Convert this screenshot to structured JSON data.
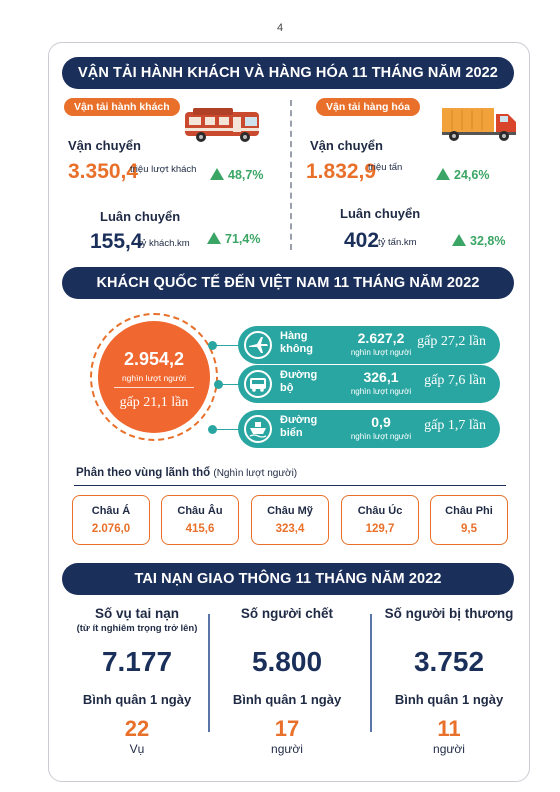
{
  "page_number": "4",
  "transport": {
    "title": "VẬN TẢI HÀNH KHÁCH VÀ HÀNG HÓA 11 THÁNG NĂM 2022",
    "passenger": {
      "tag": "Vận tải hành khách",
      "transport_label": "Vận chuyển",
      "transport_value": "3.350,4",
      "transport_unit": "triệu lượt khách",
      "transport_growth": "48,7%",
      "rotation_label": "Luân chuyển",
      "rotation_value": "155,4",
      "rotation_unit": "tỷ khách.km",
      "rotation_growth": "71,4%"
    },
    "cargo": {
      "tag": "Vận tải hàng hóa",
      "transport_label": "Vận chuyển",
      "transport_value": "1.832,9",
      "transport_unit": "triệu tấn",
      "transport_growth": "24,6%",
      "rotation_label": "Luân chuyển",
      "rotation_value": "402",
      "rotation_unit": "tỷ tấn.km",
      "rotation_growth": "32,8%"
    }
  },
  "visitors": {
    "title": "KHÁCH QUỐC TẾ ĐẾN VIỆT NAM 11 THÁNG NĂM 2022",
    "total_value": "2.954,2",
    "total_unit": "nghìn lượt người",
    "total_gap": "gấp 21,1 lần",
    "modes": [
      {
        "name": "Hàng không",
        "value": "2.627,2",
        "unit": "nghìn lượt người",
        "gap": "gấp 27,2 lần",
        "icon": "airplane-icon"
      },
      {
        "name": "Đường bộ",
        "value": "326,1",
        "unit": "nghìn lượt người",
        "gap": "gấp 7,6 lần",
        "icon": "bus-icon"
      },
      {
        "name": "Đường biển",
        "value": "0,9",
        "unit": "nghìn lượt người",
        "gap": "gấp 1,7 lần",
        "icon": "ship-icon"
      }
    ],
    "region_title": "Phân theo vùng lãnh thổ",
    "region_unit": "(Nghìn lượt người)",
    "regions": [
      {
        "name": "Châu Á",
        "value": "2.076,0"
      },
      {
        "name": "Châu Âu",
        "value": "415,6"
      },
      {
        "name": "Châu Mỹ",
        "value": "323,4"
      },
      {
        "name": "Châu Úc",
        "value": "129,7"
      },
      {
        "name": "Châu Phi",
        "value": "9,5"
      }
    ]
  },
  "accidents": {
    "title": "TAI NẠN GIAO THÔNG 11 THÁNG NĂM 2022",
    "avg_label": "Bình quân 1 ngày",
    "items": [
      {
        "title": "Số vụ tai nạn",
        "subtitle": "(từ ít nghiêm trọng trở lên)",
        "value": "7.177",
        "daily": "22",
        "daily_unit": "Vụ"
      },
      {
        "title": "Số người chết",
        "subtitle": "",
        "value": "5.800",
        "daily": "17",
        "daily_unit": "người"
      },
      {
        "title": "Số người bị thương",
        "subtitle": "",
        "value": "3.752",
        "daily": "11",
        "daily_unit": "người"
      }
    ]
  },
  "colors": {
    "navy": "#1b2f5b",
    "orange": "#e8702a",
    "teal": "#2aa6a2",
    "green": "#3aa564"
  }
}
